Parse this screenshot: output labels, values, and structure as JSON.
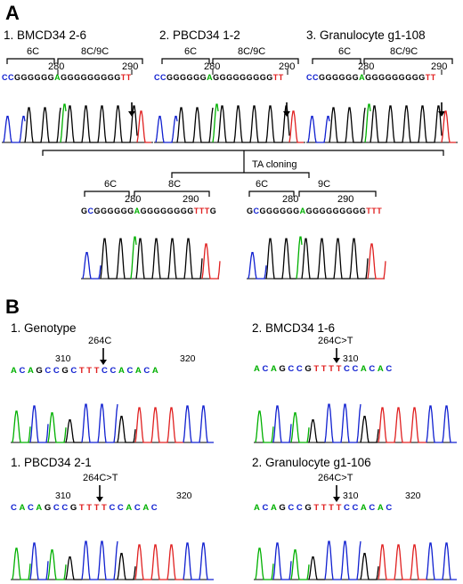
{
  "colors": {
    "A": "#00b000",
    "C": "#1020d0",
    "G": "#000000",
    "T": "#e02020"
  },
  "panel_a": {
    "letter": "A",
    "samples": [
      {
        "title": "1. BMCD34 2-6",
        "label_6c": "6C",
        "label_8c9c": "8C/9C",
        "pos1": "280",
        "pos2": "290",
        "sequence": "CCGGGGGGAGGGGGGGGGTT"
      },
      {
        "title": "2. PBCD34 1-2",
        "label_6c": "6C",
        "label_8c9c": "8C/9C",
        "pos1": "280",
        "pos2": "290",
        "sequence": "CCGGGGGGAGGGGGGGGGTT"
      },
      {
        "title": "3. Granulocyte g1-108",
        "label_6c": "6C",
        "label_8c9c": "8C/9C",
        "pos1": "280",
        "pos2": "290",
        "sequence": "CCGGGGGGAGGGGGGGGGTT"
      }
    ],
    "cloning_label": "TA cloning",
    "clones": [
      {
        "label_6c": "6C",
        "label_long": "8C",
        "pos1": "280",
        "pos2": "290",
        "sequence": "GCGGGGGGAGGGGGGGGTTTG"
      },
      {
        "label_6c": "6C",
        "label_long": "9C",
        "pos1": "280",
        "pos2": "290",
        "sequence": "GCGGGGGGAGGGGGGGGGTTT"
      }
    ]
  },
  "panel_b": {
    "letter": "B",
    "samples": [
      {
        "title": "1. Genotype",
        "mutation": "264C",
        "pos1": "310",
        "pos2": "320",
        "sequence": "ACAGCCGCTTTCCACACA"
      },
      {
        "title": "2. BMCD34 1-6",
        "mutation": "264C>T",
        "pos1": "310",
        "pos2": "",
        "sequence": "ACAGCCGTTTTCCACAC"
      },
      {
        "title": "1. PBCD34 2-1",
        "mutation": "264C>T",
        "pos1": "310",
        "pos2": "320",
        "sequence": "CACAGCCGTTTTCCACAC"
      },
      {
        "title": "2. Granulocyte g1-106",
        "mutation": "264C>T",
        "pos1": "310",
        "pos2": "320",
        "sequence": "ACAGCCGTTTTCCACAC"
      }
    ]
  }
}
